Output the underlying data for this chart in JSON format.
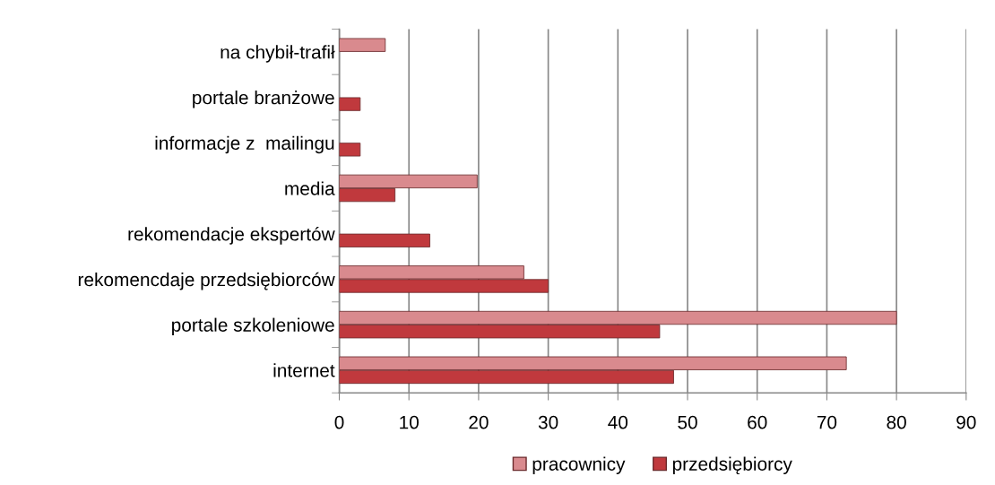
{
  "chart_data": {
    "type": "bar",
    "orientation": "horizontal",
    "categories": [
      "na chybił-trafił",
      "portale branżowe",
      "informacje z  mailingu",
      "media",
      "rekomendacje ekspertów",
      "rekomencdaje przedsiębiorców",
      "portale szkoleniowe",
      "internet"
    ],
    "series": [
      {
        "name": "pracownicy",
        "color": "#d98a8e",
        "values": [
          6.6,
          null,
          null,
          19.8,
          null,
          26.5,
          80,
          72.8
        ]
      },
      {
        "name": "przedsiębiorcy",
        "color": "#c0393d",
        "values": [
          null,
          3,
          3,
          8,
          13,
          30,
          46,
          48
        ]
      }
    ],
    "xlim": [
      0,
      90
    ],
    "xticks": [
      0,
      10,
      20,
      30,
      40,
      50,
      60,
      70,
      80,
      90
    ],
    "grid": "x",
    "legend": "bottom"
  }
}
